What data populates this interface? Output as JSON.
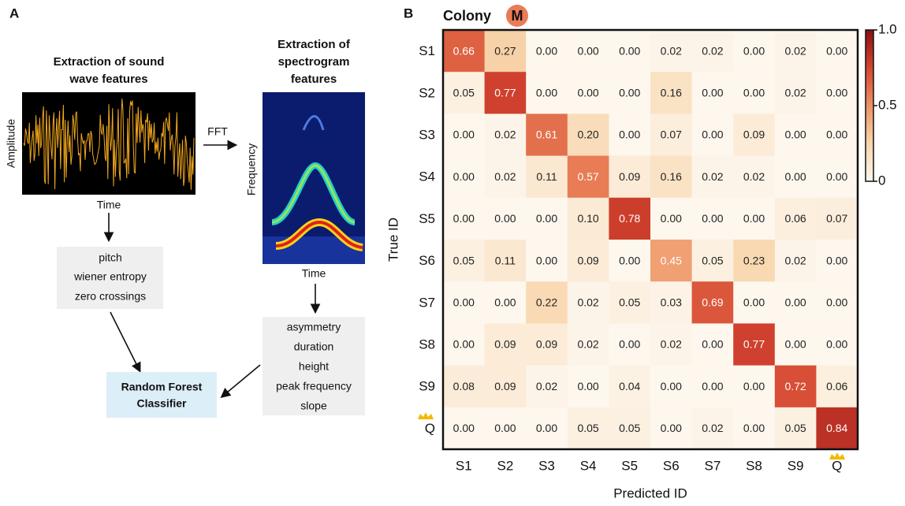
{
  "panel_a": {
    "label": "A",
    "wave": {
      "title_lines": [
        "Extraction of sound",
        "wave features"
      ],
      "y_label": "Amplitude",
      "x_label": "Time"
    },
    "fft": "FFT",
    "spectrogram": {
      "title_lines": [
        "Extraction of",
        "spectrogram",
        "features"
      ],
      "y_label": "Frequency",
      "x_label": "Time"
    },
    "wave_features": [
      "pitch",
      "wiener entropy",
      "zero crossings"
    ],
    "spectrogram_features": [
      "asymmetry",
      "duration",
      "height",
      "peak frequency",
      "slope"
    ],
    "classifier_lines": [
      "Random Forest",
      "Classifier"
    ]
  },
  "chart_data": {
    "type": "heatmap",
    "panel_label": "B",
    "title": "Colony",
    "title_badge": "M",
    "x_label": "Predicted ID",
    "y_label": "True ID",
    "x_categories": [
      "S1",
      "S2",
      "S3",
      "S4",
      "S5",
      "S6",
      "S7",
      "S8",
      "S9",
      "Q"
    ],
    "y_categories": [
      "S1",
      "S2",
      "S3",
      "S4",
      "S5",
      "S6",
      "S7",
      "S8",
      "S9",
      "Q"
    ],
    "values": [
      [
        0.66,
        0.27,
        0,
        0,
        0,
        0.02,
        0.02,
        0,
        0.02,
        0
      ],
      [
        0.05,
        0.77,
        0,
        0,
        0,
        0.16,
        0,
        0,
        0.02,
        0
      ],
      [
        0,
        0.02,
        0.61,
        0.2,
        0,
        0.07,
        0,
        0.09,
        0,
        0
      ],
      [
        0,
        0.02,
        0.11,
        0.57,
        0.09,
        0.16,
        0.02,
        0.02,
        0,
        0
      ],
      [
        0,
        0,
        0,
        0.1,
        0.78,
        0,
        0,
        0,
        0.06,
        0.07
      ],
      [
        0.05,
        0.11,
        0,
        0.09,
        0,
        0.45,
        0.05,
        0.23,
        0.02,
        0
      ],
      [
        0,
        0,
        0.22,
        0.02,
        0.05,
        0.03,
        0.69,
        0,
        0,
        0
      ],
      [
        0,
        0.09,
        0.09,
        0.02,
        0,
        0.02,
        0,
        0.77,
        0,
        0
      ],
      [
        0.08,
        0.09,
        0.02,
        0,
        0.04,
        0,
        0,
        0,
        0.72,
        0.06
      ],
      [
        0,
        0,
        0,
        0.05,
        0.05,
        0,
        0.02,
        0,
        0.05,
        0.84
      ]
    ],
    "value_labels": [
      [
        "0.66",
        "0.27",
        "0.00",
        "0.00",
        "0.00",
        "0.02",
        "0.02",
        "0.00",
        "0.02",
        "0.00"
      ],
      [
        "0.05",
        "0.77",
        "0.00",
        "0.00",
        "0.00",
        "0.16",
        "0.00",
        "0.00",
        "0.02",
        "0.00"
      ],
      [
        "0.00",
        "0.02",
        "0.61",
        "0.20",
        "0.00",
        "0.07",
        "0.00",
        "0.09",
        "0.00",
        "0.00"
      ],
      [
        "0.00",
        "0.02",
        "0.11",
        "0.57",
        "0.09",
        "0.16",
        "0.02",
        "0.02",
        "0.00",
        "0.00"
      ],
      [
        "0.00",
        "0.00",
        "0.00",
        "0.10",
        "0.78",
        "0.00",
        "0.00",
        "0.00",
        "0.06",
        "0.07"
      ],
      [
        "0.05",
        "0.11",
        "0.00",
        "0.09",
        "0.00",
        "0.45",
        "0.05",
        "0.23",
        "0.02",
        "0.00"
      ],
      [
        "0.00",
        "0.00",
        "0.22",
        "0.02",
        "0.05",
        "0.03",
        "0.69",
        "0.00",
        "0.00",
        "0.00"
      ],
      [
        "0.00",
        "0.09",
        "0.09",
        "0.02",
        "0.00",
        "0.02",
        "0.00",
        "0.77",
        "0.00",
        "0.00"
      ],
      [
        "0.08",
        "0.09",
        "0.02",
        "0.00",
        "0.04",
        "0.00",
        "0.00",
        "0.00",
        "0.72",
        "0.06"
      ],
      [
        "0.00",
        "0.00",
        "0.00",
        "0.05",
        "0.05",
        "0.00",
        "0.02",
        "0.00",
        "0.05",
        "0.84"
      ]
    ],
    "clim": [
      0,
      1
    ],
    "cticks": [
      0,
      0.5,
      {
        "value": 1,
        "label": "1.0"
      }
    ],
    "colormap": [
      "#fdf7ee",
      "#f8d6ad",
      "#ee9263",
      "#d54530",
      "#8c0e12"
    ]
  }
}
